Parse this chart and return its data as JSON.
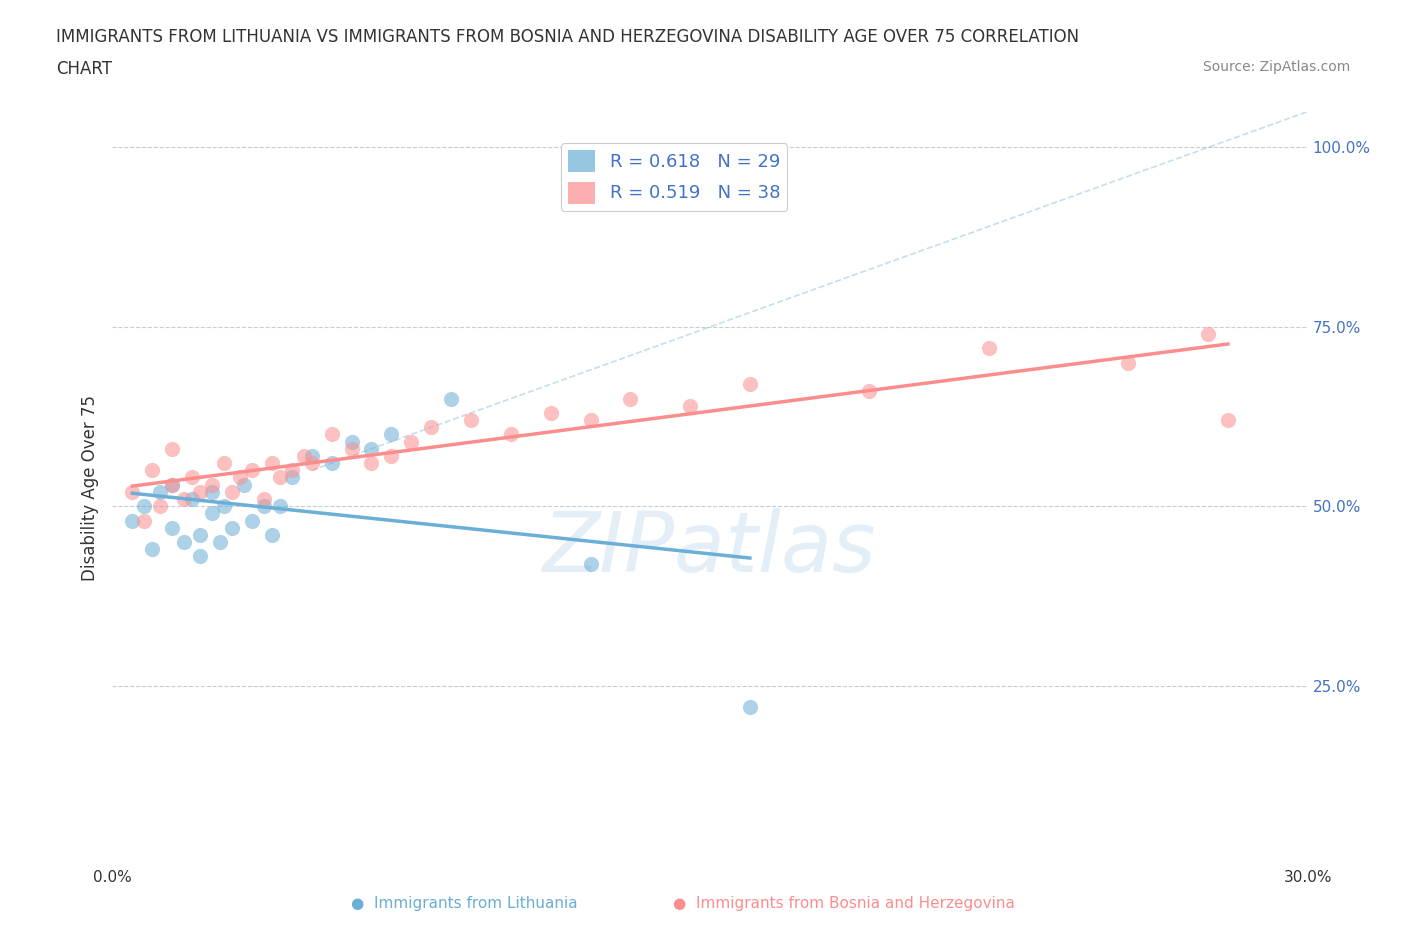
{
  "title_line1": "IMMIGRANTS FROM LITHUANIA VS IMMIGRANTS FROM BOSNIA AND HERZEGOVINA DISABILITY AGE OVER 75 CORRELATION",
  "title_line2": "CHART",
  "source_text": "Source: ZipAtlas.com",
  "ylabel": "Disability Age Over 75",
  "xlim": [
    0.0,
    0.3
  ],
  "ylim": [
    0.0,
    1.05
  ],
  "xticks": [
    0.0,
    0.05,
    0.1,
    0.15,
    0.2,
    0.25,
    0.3
  ],
  "legend_entry1": "R = 0.618   N = 29",
  "legend_entry2": "R = 0.519   N = 38",
  "series1_color": "#6baed6",
  "series2_color": "#fc8d8d",
  "series1_label": "Immigrants from Lithuania",
  "series2_label": "Immigrants from Bosnia and Herzegovina",
  "watermark": "ZIPatlas",
  "background_color": "#ffffff",
  "grid_color": "#cccccc",
  "scatter_alpha": 0.55,
  "scatter_size": 120,
  "lithuania_x": [
    0.005,
    0.008,
    0.01,
    0.012,
    0.015,
    0.015,
    0.018,
    0.02,
    0.022,
    0.022,
    0.025,
    0.025,
    0.027,
    0.028,
    0.03,
    0.033,
    0.035,
    0.038,
    0.04,
    0.042,
    0.045,
    0.05,
    0.055,
    0.06,
    0.065,
    0.07,
    0.085,
    0.12,
    0.16
  ],
  "lithuania_y": [
    0.48,
    0.5,
    0.44,
    0.52,
    0.53,
    0.47,
    0.45,
    0.51,
    0.43,
    0.46,
    0.52,
    0.49,
    0.45,
    0.5,
    0.47,
    0.53,
    0.48,
    0.5,
    0.46,
    0.5,
    0.54,
    0.57,
    0.56,
    0.59,
    0.58,
    0.6,
    0.65,
    0.42,
    0.22
  ],
  "bosnia_x": [
    0.005,
    0.008,
    0.01,
    0.012,
    0.015,
    0.015,
    0.018,
    0.02,
    0.022,
    0.025,
    0.028,
    0.03,
    0.032,
    0.035,
    0.038,
    0.04,
    0.042,
    0.045,
    0.048,
    0.05,
    0.055,
    0.06,
    0.065,
    0.07,
    0.075,
    0.08,
    0.09,
    0.1,
    0.11,
    0.12,
    0.13,
    0.145,
    0.16,
    0.19,
    0.22,
    0.255,
    0.275,
    0.28
  ],
  "bosnia_y": [
    0.52,
    0.48,
    0.55,
    0.5,
    0.58,
    0.53,
    0.51,
    0.54,
    0.52,
    0.53,
    0.56,
    0.52,
    0.54,
    0.55,
    0.51,
    0.56,
    0.54,
    0.55,
    0.57,
    0.56,
    0.6,
    0.58,
    0.56,
    0.57,
    0.59,
    0.61,
    0.62,
    0.6,
    0.63,
    0.62,
    0.65,
    0.64,
    0.67,
    0.66,
    0.72,
    0.7,
    0.74,
    0.62
  ]
}
